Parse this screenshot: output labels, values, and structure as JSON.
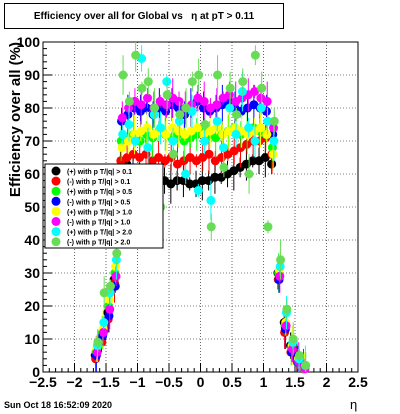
{
  "header": {
    "title": "Efficiency over all for Global vs   η at pT > 0.11",
    "timestamp": "Sun Oct 18 16:52:09 2020"
  },
  "chart_data": {
    "type": "scatter",
    "title": "Efficiency over all for Global vs   η at pT > 0.11",
    "xlabel": "η",
    "ylabel": "Efficiency over all (%)",
    "xlim": [
      -2.5,
      2.5
    ],
    "ylim": [
      0,
      100
    ],
    "x_ticks": [
      "−2.5",
      "−2",
      "−1.5",
      "−1",
      "−0.5",
      "0",
      "0.5",
      "1",
      "1.5",
      "2",
      "2.5"
    ],
    "y_ticks": [
      "0",
      "10",
      "20",
      "30",
      "40",
      "50",
      "60",
      "70",
      "80",
      "90",
      "100"
    ],
    "grid": true,
    "legend_position": "left-middle",
    "series": [
      {
        "name": "(+) with p T/|q| > 0.1",
        "color": "#000000",
        "x": [
          -1.65,
          -1.55,
          -1.45,
          -1.35,
          -1.25,
          -1.15,
          -1.05,
          -0.95,
          -0.85,
          -0.75,
          -0.65,
          -0.55,
          -0.45,
          -0.35,
          -0.25,
          -0.15,
          -0.05,
          0.05,
          0.15,
          0.25,
          0.35,
          0.45,
          0.55,
          0.65,
          0.75,
          0.85,
          0.95,
          1.05,
          1.15,
          1.25,
          1.35,
          1.45,
          1.55,
          1.65
        ],
        "y": [
          5,
          10,
          18,
          28,
          62,
          63,
          61,
          60,
          60,
          59,
          59,
          58,
          57,
          58,
          58,
          57,
          57,
          58,
          58,
          59,
          59,
          60,
          61,
          62,
          63,
          64,
          64,
          65,
          63,
          30,
          15,
          8,
          4,
          1
        ]
      },
      {
        "name": "(-) with p T/|q| > 0.1",
        "color": "#ff0000",
        "x": [
          -1.65,
          -1.55,
          -1.45,
          -1.35,
          -1.25,
          -1.15,
          -1.05,
          -0.95,
          -0.85,
          -0.75,
          -0.65,
          -0.55,
          -0.45,
          -0.35,
          -0.25,
          -0.15,
          -0.05,
          0.05,
          0.15,
          0.25,
          0.35,
          0.45,
          0.55,
          0.65,
          0.75,
          0.85,
          0.95,
          1.05,
          1.15,
          1.25,
          1.35,
          1.45,
          1.55,
          1.65
        ],
        "y": [
          4,
          9,
          16,
          27,
          64,
          65,
          66,
          65,
          66,
          64,
          65,
          64,
          65,
          63,
          64,
          65,
          64,
          65,
          66,
          64,
          65,
          66,
          67,
          68,
          69,
          70,
          70,
          71,
          66,
          28,
          12,
          6,
          3,
          1
        ]
      },
      {
        "name": "(+) with p T/|q| > 0.5",
        "color": "#00ff00",
        "x": [
          -1.65,
          -1.55,
          -1.45,
          -1.35,
          -1.25,
          -1.15,
          -1.05,
          -0.95,
          -0.85,
          -0.75,
          -0.65,
          -0.55,
          -0.45,
          -0.35,
          -0.25,
          -0.15,
          -0.05,
          0.05,
          0.15,
          0.25,
          0.35,
          0.45,
          0.55,
          0.65,
          0.75,
          0.85,
          0.95,
          1.05,
          1.15,
          1.25,
          1.35,
          1.45,
          1.55,
          1.65
        ],
        "y": [
          6,
          12,
          20,
          30,
          70,
          71,
          72,
          70,
          72,
          71,
          73,
          72,
          71,
          72,
          70,
          71,
          72,
          73,
          72,
          71,
          72,
          73,
          74,
          72,
          73,
          74,
          73,
          72,
          68,
          30,
          14,
          7,
          3,
          1
        ]
      },
      {
        "name": "(-) with p T/|q| > 0.5",
        "color": "#0000ff",
        "x": [
          -1.65,
          -1.55,
          -1.45,
          -1.35,
          -1.25,
          -1.15,
          -1.05,
          -0.95,
          -0.85,
          -0.75,
          -0.65,
          -0.55,
          -0.45,
          -0.35,
          -0.25,
          -0.15,
          -0.05,
          0.05,
          0.15,
          0.25,
          0.35,
          0.45,
          0.55,
          0.65,
          0.75,
          0.85,
          0.95,
          1.05,
          1.15,
          1.25,
          1.35,
          1.45,
          1.55,
          1.65
        ],
        "y": [
          5,
          11,
          17,
          26,
          76,
          78,
          80,
          79,
          80,
          78,
          80,
          79,
          81,
          80,
          78,
          80,
          82,
          80,
          79,
          80,
          81,
          82,
          80,
          79,
          80,
          81,
          80,
          79,
          72,
          28,
          13,
          6,
          3,
          1
        ]
      },
      {
        "name": "(+) with p T/|q| > 1.0",
        "color": "#ffff00",
        "x": [
          -1.65,
          -1.55,
          -1.45,
          -1.35,
          -1.25,
          -1.15,
          -1.05,
          -0.95,
          -0.85,
          -0.75,
          -0.65,
          -0.55,
          -0.45,
          -0.35,
          -0.25,
          -0.15,
          -0.05,
          0.05,
          0.15,
          0.25,
          0.35,
          0.45,
          0.55,
          0.65,
          0.75,
          0.85,
          0.95,
          1.05,
          1.15,
          1.25,
          1.35,
          1.45,
          1.55,
          1.65
        ],
        "y": [
          7,
          13,
          22,
          32,
          68,
          70,
          72,
          73,
          74,
          72,
          73,
          72,
          74,
          73,
          72,
          73,
          74,
          72,
          73,
          74,
          72,
          73,
          74,
          73,
          72,
          73,
          74,
          72,
          66,
          31,
          15,
          8,
          4,
          1
        ]
      },
      {
        "name": "(-) with p T/|q| > 1.0",
        "color": "#ff00ff",
        "x": [
          -1.65,
          -1.55,
          -1.45,
          -1.35,
          -1.25,
          -1.15,
          -1.05,
          -0.95,
          -0.85,
          -0.75,
          -0.65,
          -0.55,
          -0.45,
          -0.35,
          -0.25,
          -0.15,
          -0.05,
          0.05,
          0.15,
          0.25,
          0.35,
          0.45,
          0.55,
          0.65,
          0.75,
          0.85,
          0.95,
          1.05,
          1.15,
          1.25,
          1.35,
          1.45,
          1.55,
          1.65
        ],
        "y": [
          6,
          12,
          19,
          29,
          77,
          80,
          82,
          81,
          83,
          80,
          82,
          81,
          83,
          82,
          80,
          81,
          83,
          82,
          80,
          81,
          83,
          84,
          82,
          83,
          84,
          85,
          83,
          82,
          74,
          29,
          14,
          7,
          3,
          1
        ]
      },
      {
        "name": "(+) with p T/|q| > 2.0",
        "color": "#00ffff",
        "x": [
          -1.65,
          -1.55,
          -1.45,
          -1.35,
          -1.25,
          -1.15,
          -1.05,
          -0.95,
          -0.85,
          -0.75,
          -0.65,
          -0.55,
          -0.45,
          -0.35,
          -0.25,
          -0.15,
          -0.05,
          0.05,
          0.15,
          0.25,
          0.35,
          0.45,
          0.55,
          0.65,
          0.75,
          0.85,
          0.95,
          1.05,
          1.15,
          1.25,
          1.35,
          1.45,
          1.55,
          1.65
        ],
        "y": [
          8,
          15,
          24,
          34,
          72,
          75,
          70,
          95,
          68,
          78,
          74,
          88,
          70,
          76,
          60,
          79,
          55,
          70,
          52,
          76,
          68,
          80,
          72,
          85,
          74,
          70,
          80,
          76,
          70,
          32,
          18,
          9,
          4,
          2
        ]
      },
      {
        "name": "(-) with p T/|q| > 2.0",
        "color": "#66dd55",
        "x": [
          -1.65,
          -1.55,
          -1.45,
          -1.35,
          -1.25,
          -1.15,
          -1.05,
          -0.95,
          -0.85,
          -0.75,
          -0.65,
          -0.55,
          -0.45,
          -0.35,
          -0.25,
          -0.15,
          -0.05,
          0.05,
          0.15,
          0.25,
          0.35,
          0.45,
          0.55,
          0.65,
          0.75,
          0.85,
          0.95,
          1.05,
          1.15,
          1.25,
          1.35,
          1.45,
          1.55,
          1.65
        ],
        "y": [
          9,
          24,
          26,
          36,
          90,
          82,
          96,
          86,
          88,
          80,
          50,
          84,
          66,
          78,
          80,
          88,
          90,
          75,
          44,
          90,
          62,
          86,
          78,
          88,
          60,
          96,
          86,
          44,
          76,
          34,
          19,
          10,
          5,
          2
        ]
      }
    ]
  }
}
